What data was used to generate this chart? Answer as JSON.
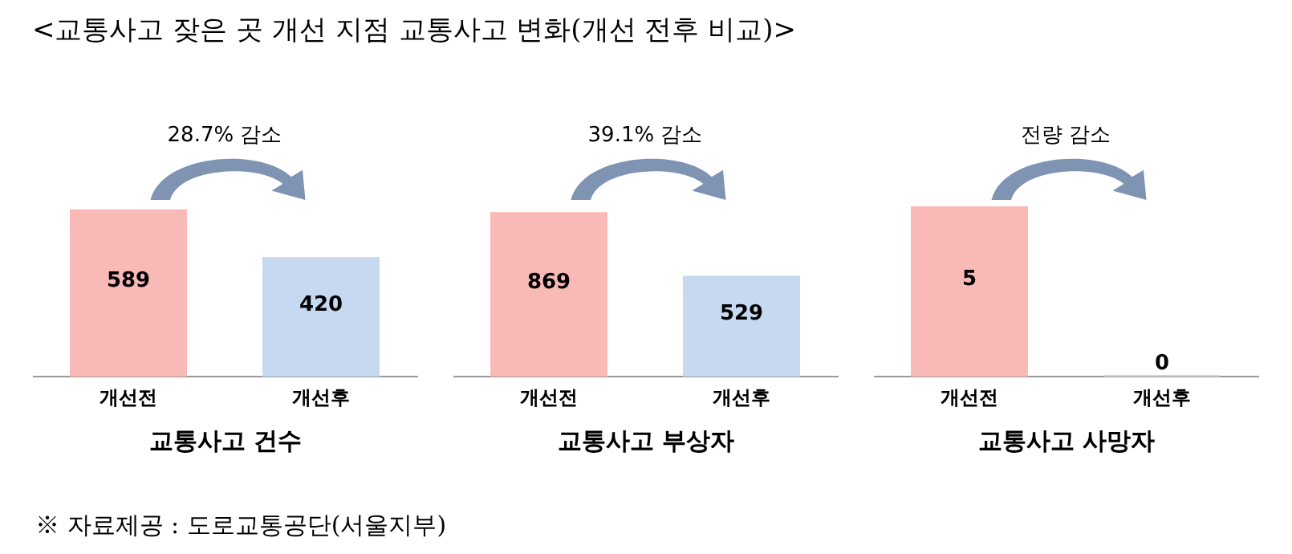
{
  "chart_data": [
    {
      "type": "bar",
      "title": "<교통사고 잦은 곳 개선 지점 교통사고 변화(개선 전후 비교)>",
      "categories": [
        "개선전",
        "개선후"
      ],
      "values": [
        589,
        420
      ],
      "colors": [
        "#f9b9b7",
        "#c6d9f0"
      ],
      "data_labels": true,
      "xlabel": "교통사고 건수",
      "annotations": [
        "28.7% 감소",
        "※ 자료제공 : 도로교통공단(서울지부)"
      ]
    },
    {
      "type": "bar",
      "categories": [
        "개선전",
        "개선후"
      ],
      "values": [
        869,
        529
      ],
      "colors": [
        "#f9b9b7",
        "#c6d9f0"
      ],
      "data_labels": true,
      "xlabel": "교통사고 부상자",
      "annotations": [
        "39.1% 감소"
      ]
    },
    {
      "type": "bar",
      "categories": [
        "개선전",
        "개선후"
      ],
      "values": [
        5,
        0
      ],
      "colors": [
        "#f9b9b7",
        "#c6d9f0"
      ],
      "data_labels": true,
      "xlabel": "교통사고 사망자",
      "annotations": [
        "전량 감소"
      ]
    }
  ]
}
